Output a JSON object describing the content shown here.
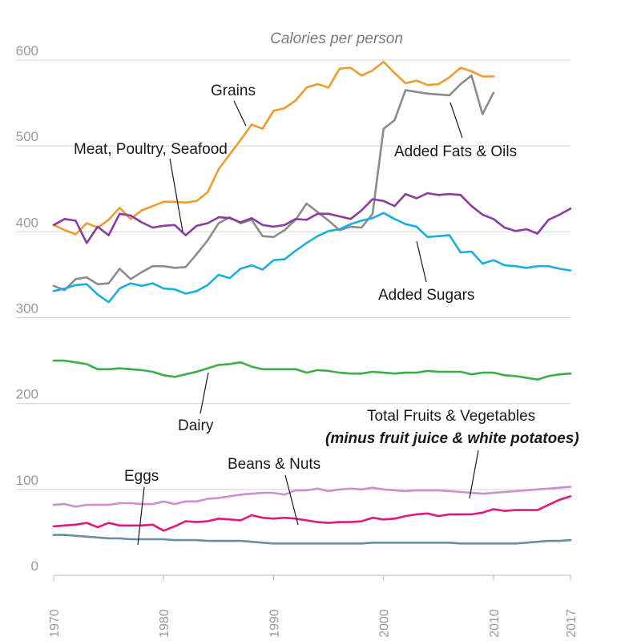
{
  "chart_data": {
    "type": "line",
    "title": "",
    "ylabel": "Calories per person",
    "xlabel": "",
    "xlim": [
      1970,
      2017
    ],
    "ylim": [
      0,
      600
    ],
    "y_ticks": [
      "0",
      "100",
      "200",
      "300",
      "400",
      "500",
      "600"
    ],
    "x_ticks": [
      "1970",
      "1980",
      "1990",
      "2000",
      "2010",
      "2017"
    ],
    "grid": true,
    "legend": "none (series labeled directly on chart)",
    "series": [
      {
        "name": "Grains",
        "color": "#f09b2e",
        "x": [
          1970,
          1971,
          1972,
          1973,
          1974,
          1975,
          1976,
          1977,
          1978,
          1979,
          1980,
          1981,
          1982,
          1983,
          1984,
          1985,
          1986,
          1987,
          1988,
          1989,
          1990,
          1991,
          1992,
          1993,
          1994,
          1995,
          1996,
          1997,
          1998,
          1999,
          2000,
          2001,
          2002,
          2003,
          2004,
          2005,
          2006,
          2007,
          2008,
          2009,
          2010
        ],
        "y": [
          408,
          402,
          397,
          410,
          405,
          414,
          428,
          415,
          425,
          430,
          435,
          435,
          434,
          436,
          446,
          473,
          490,
          507,
          525,
          520,
          541,
          544,
          553,
          568,
          572,
          568,
          590,
          591,
          582,
          588,
          598,
          585,
          573,
          576,
          571,
          572,
          580,
          591,
          587,
          581,
          581
        ]
      },
      {
        "name": "Added Fats & Oils",
        "color": "#8c8c8c",
        "x": [
          1970,
          1971,
          1972,
          1973,
          1974,
          1975,
          1976,
          1977,
          1978,
          1979,
          1980,
          1981,
          1982,
          1983,
          1984,
          1985,
          1986,
          1987,
          1988,
          1989,
          1990,
          1991,
          1992,
          1993,
          1994,
          1995,
          1996,
          1997,
          1998,
          1999,
          2000,
          2001,
          2002,
          2003,
          2004,
          2005,
          2006,
          2007,
          2008,
          2009,
          2010
        ],
        "y": [
          337,
          332,
          345,
          347,
          339,
          340,
          357,
          345,
          353,
          360,
          360,
          358,
          359,
          374,
          390,
          410,
          417,
          410,
          414,
          395,
          394,
          402,
          414,
          433,
          423,
          413,
          402,
          406,
          405,
          421,
          520,
          530,
          565,
          563,
          561,
          560,
          559,
          572,
          582,
          537,
          562
        ]
      },
      {
        "name": "Meat, Poultry, Seafood",
        "color": "#8a3d9e",
        "x": [
          1970,
          1971,
          1972,
          1973,
          1974,
          1975,
          1976,
          1977,
          1978,
          1979,
          1980,
          1981,
          1982,
          1983,
          1984,
          1985,
          1986,
          1987,
          1988,
          1989,
          1990,
          1991,
          1992,
          1993,
          1994,
          1995,
          1996,
          1997,
          1998,
          1999,
          2000,
          2001,
          2002,
          2003,
          2004,
          2005,
          2006,
          2007,
          2008,
          2009,
          2010,
          2011,
          2012,
          2013,
          2014,
          2015,
          2016,
          2017
        ],
        "y": [
          408,
          415,
          413,
          387,
          406,
          396,
          421,
          419,
          411,
          405,
          407,
          408,
          396,
          407,
          410,
          417,
          416,
          411,
          416,
          408,
          406,
          408,
          415,
          414,
          421,
          421,
          418,
          415,
          425,
          438,
          436,
          430,
          444,
          439,
          445,
          443,
          444,
          443,
          430,
          420,
          415,
          405,
          401,
          403,
          398,
          414,
          420,
          427
        ]
      },
      {
        "name": "Added Sugars",
        "color": "#1aaee3",
        "x": [
          1970,
          1971,
          1972,
          1973,
          1974,
          1975,
          1976,
          1977,
          1978,
          1979,
          1980,
          1981,
          1982,
          1983,
          1984,
          1985,
          1986,
          1987,
          1988,
          1989,
          1990,
          1991,
          1992,
          1993,
          1994,
          1995,
          1996,
          1997,
          1998,
          1999,
          2000,
          2001,
          2002,
          2003,
          2004,
          2005,
          2006,
          2007,
          2008,
          2009,
          2010,
          2011,
          2012,
          2013,
          2014,
          2015,
          2016,
          2017
        ],
        "y": [
          331,
          334,
          338,
          339,
          327,
          318,
          334,
          340,
          337,
          340,
          334,
          333,
          328,
          331,
          338,
          350,
          346,
          357,
          361,
          356,
          367,
          368,
          378,
          387,
          395,
          401,
          403,
          409,
          413,
          416,
          422,
          415,
          409,
          406,
          394,
          395,
          396,
          376,
          377,
          363,
          367,
          361,
          360,
          358,
          360,
          360,
          357,
          355
        ]
      },
      {
        "name": "Dairy",
        "color": "#3aae49",
        "x": [
          1970,
          1971,
          1972,
          1973,
          1974,
          1975,
          1976,
          1977,
          1978,
          1979,
          1980,
          1981,
          1982,
          1983,
          1984,
          1985,
          1986,
          1987,
          1988,
          1989,
          1990,
          1991,
          1992,
          1993,
          1994,
          1995,
          1996,
          1997,
          1998,
          1999,
          2000,
          2001,
          2002,
          2003,
          2004,
          2005,
          2006,
          2007,
          2008,
          2009,
          2010,
          2011,
          2012,
          2013,
          2014,
          2015,
          2016,
          2017
        ],
        "y": [
          250,
          250,
          248,
          246,
          240,
          240,
          241,
          240,
          239,
          237,
          233,
          231,
          234,
          237,
          241,
          245,
          246,
          248,
          243,
          240,
          240,
          240,
          240,
          236,
          239,
          238,
          236,
          235,
          235,
          237,
          236,
          235,
          236,
          236,
          238,
          237,
          237,
          237,
          234,
          236,
          236,
          233,
          232,
          230,
          228,
          232,
          234,
          235
        ]
      },
      {
        "name": "Total Fruits & Vegetables",
        "color": "#cc8fcf",
        "x": [
          1970,
          1971,
          1972,
          1973,
          1974,
          1975,
          1976,
          1977,
          1978,
          1979,
          1980,
          1981,
          1982,
          1983,
          1984,
          1985,
          1986,
          1987,
          1988,
          1989,
          1990,
          1991,
          1992,
          1993,
          1994,
          1995,
          1996,
          1997,
          1998,
          1999,
          2000,
          2001,
          2002,
          2003,
          2004,
          2005,
          2006,
          2007,
          2008,
          2009,
          2010,
          2011,
          2012,
          2013,
          2014,
          2015,
          2016,
          2017
        ],
        "y": [
          82,
          83,
          80,
          82,
          82,
          82,
          84,
          84,
          83,
          83,
          86,
          83,
          86,
          86,
          89,
          90,
          92,
          94,
          95,
          96,
          96,
          94,
          99,
          99,
          101,
          98,
          100,
          101,
          100,
          102,
          100,
          99,
          98,
          99,
          99,
          99,
          98,
          97,
          96,
          95,
          96,
          97,
          98,
          99,
          100,
          101,
          102,
          103
        ]
      },
      {
        "name": "Beans & Nuts",
        "color": "#e0197c",
        "x": [
          1970,
          1971,
          1972,
          1973,
          1974,
          1975,
          1976,
          1977,
          1978,
          1979,
          1980,
          1981,
          1982,
          1983,
          1984,
          1985,
          1986,
          1987,
          1988,
          1989,
          1990,
          1991,
          1992,
          1993,
          1994,
          1995,
          1996,
          1997,
          1998,
          1999,
          2000,
          2001,
          2002,
          2003,
          2004,
          2005,
          2006,
          2007,
          2008,
          2009,
          2010,
          2011,
          2012,
          2013,
          2014,
          2015,
          2016,
          2017
        ],
        "y": [
          57,
          58,
          59,
          61,
          56,
          61,
          58,
          58,
          58,
          59,
          52,
          57,
          63,
          62,
          63,
          66,
          65,
          64,
          70,
          67,
          66,
          67,
          66,
          64,
          62,
          61,
          62,
          62,
          63,
          67,
          65,
          66,
          69,
          71,
          72,
          69,
          71,
          71,
          71,
          73,
          77,
          75,
          76,
          76,
          76,
          82,
          88,
          92
        ]
      },
      {
        "name": "Eggs",
        "color": "#6b8ea0",
        "x": [
          1970,
          1971,
          1972,
          1973,
          1974,
          1975,
          1976,
          1977,
          1978,
          1979,
          1980,
          1981,
          1982,
          1983,
          1984,
          1985,
          1986,
          1987,
          1988,
          1989,
          1990,
          1991,
          1992,
          1993,
          1994,
          1995,
          1996,
          1997,
          1998,
          1999,
          2000,
          2001,
          2002,
          2003,
          2004,
          2005,
          2006,
          2007,
          2008,
          2009,
          2010,
          2011,
          2012,
          2013,
          2014,
          2015,
          2016,
          2017
        ],
        "y": [
          47,
          47,
          46,
          45,
          44,
          43,
          43,
          42,
          42,
          42,
          42,
          41,
          41,
          41,
          40,
          40,
          40,
          40,
          39,
          38,
          37,
          37,
          37,
          37,
          37,
          37,
          37,
          37,
          37,
          38,
          38,
          38,
          38,
          38,
          38,
          38,
          38,
          37,
          37,
          37,
          37,
          37,
          37,
          38,
          39,
          40,
          40,
          41
        ]
      }
    ],
    "annotations": {
      "grains": "Grains",
      "meat": "Meat, Poultry, Seafood",
      "fats": "Added Fats & Oils",
      "sugars": "Added Sugars",
      "dairy": "Dairy",
      "fruits_line1": "Total Fruits & Vegetables",
      "fruits_line2": "(minus fruit juice & white potatoes)",
      "beans": "Beans & Nuts",
      "eggs": "Eggs"
    }
  }
}
